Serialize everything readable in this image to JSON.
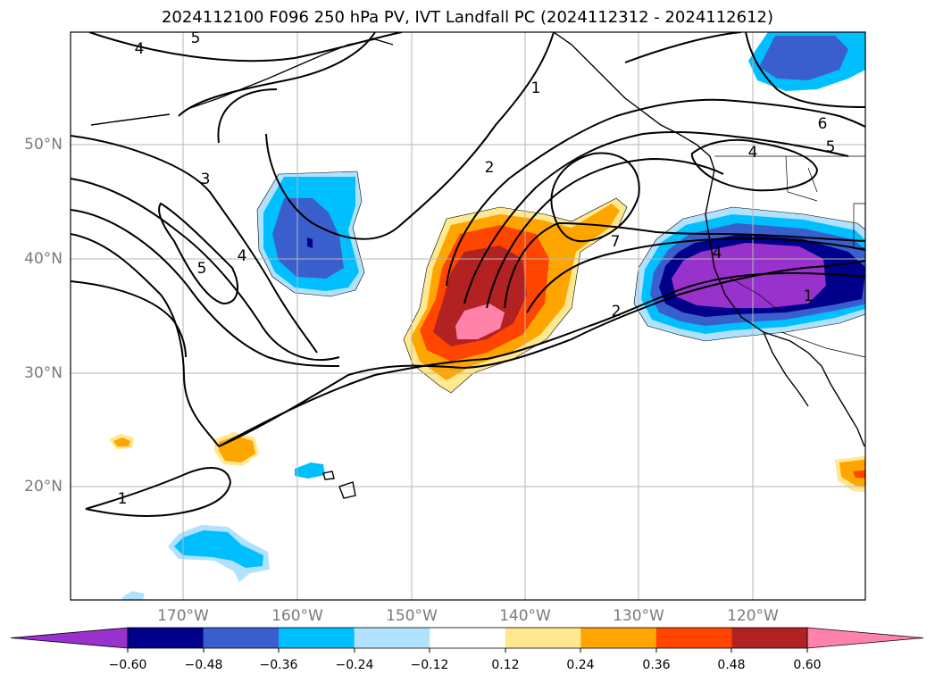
{
  "title": "2024112100 F096 250 hPa PV, IVT Landfall PC (2024112312 - 2024112612)",
  "lat_labels": [
    "50°N",
    "40°N",
    "30°N",
    "20°N"
  ],
  "lon_labels": [
    "170°W",
    "160°W",
    "150°W",
    "140°W",
    "130°W",
    "120°W"
  ],
  "contour_labels": [
    "4",
    "5",
    "1",
    "3",
    "2",
    "5",
    "4",
    "7",
    "6",
    "5",
    "4",
    "4",
    "2",
    "1",
    "1"
  ],
  "colorbar": {
    "ticks": [
      "−0.60",
      "−0.48",
      "−0.36",
      "−0.24",
      "−0.12",
      "0.12",
      "0.24",
      "0.36",
      "0.48",
      "0.60"
    ],
    "colors": [
      "#9932cc",
      "#00008b",
      "#3a5fcd",
      "#00bfff",
      "#b0e2ff",
      "#ffffff",
      "#ffe88f",
      "#ffa500",
      "#ff4500",
      "#b22222",
      "#ff82ab"
    ]
  },
  "colors": {
    "pos_1": "#ffe88f",
    "pos_2": "#ffa500",
    "pos_3": "#ff4500",
    "pos_4": "#b22222",
    "pos_5": "#ff82ab",
    "neg_1": "#b0e2ff",
    "neg_2": "#00bfff",
    "neg_3": "#3a5fcd",
    "neg_4": "#00008b",
    "neg_5": "#9932cc"
  }
}
